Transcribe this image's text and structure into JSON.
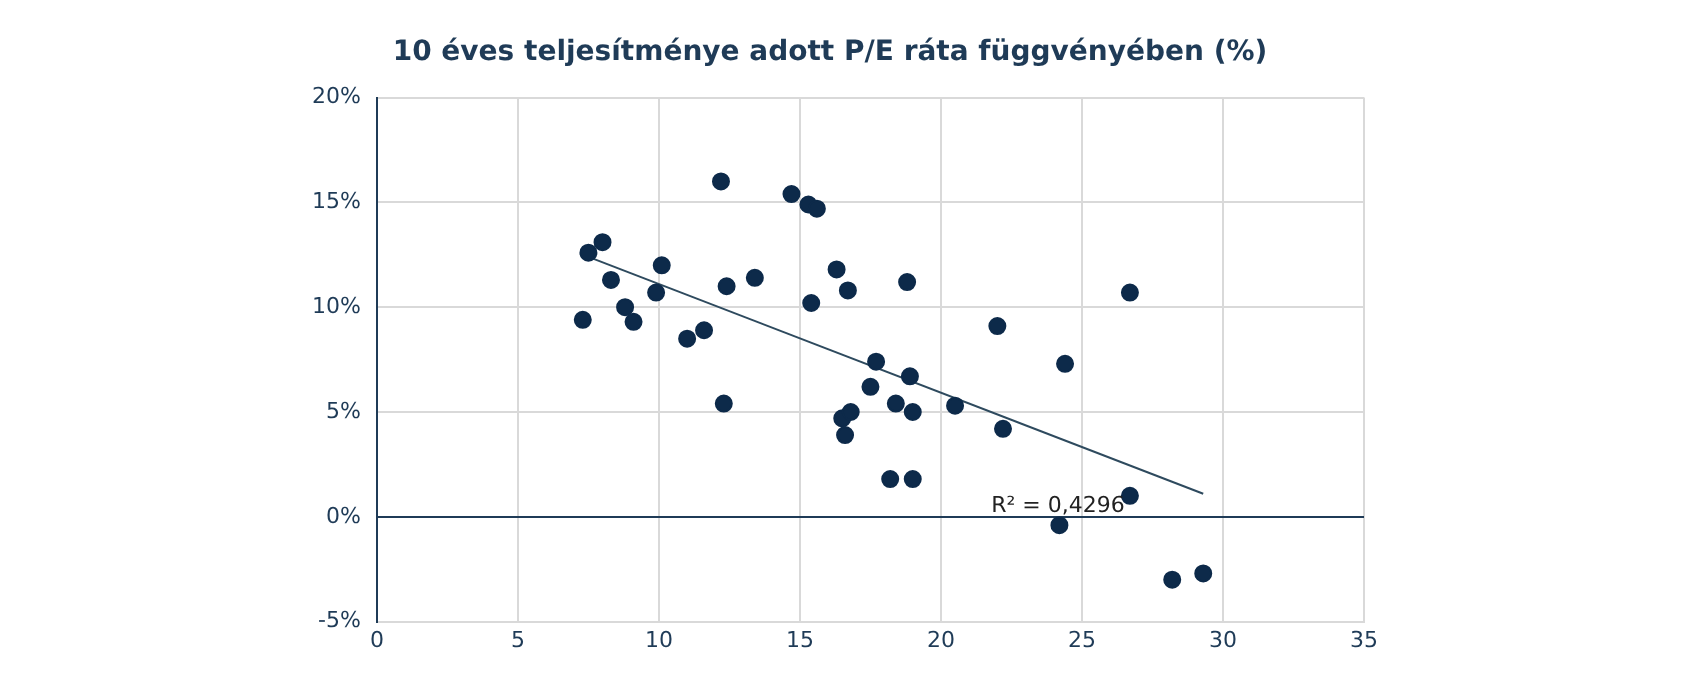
{
  "chart_data": {
    "type": "scatter",
    "title": "10 éves teljesítménye adott P/E ráta függvényében (%)",
    "xlim": [
      0,
      35
    ],
    "xticks": [
      0,
      5,
      10,
      15,
      20,
      25,
      30,
      35
    ],
    "ylim": [
      -5,
      20
    ],
    "yticks": [
      {
        "value": -5,
        "label": "-5%"
      },
      {
        "value": 0,
        "label": "0%"
      },
      {
        "value": 5,
        "label": "5%"
      },
      {
        "value": 10,
        "label": "10%"
      },
      {
        "value": 15,
        "label": "15%"
      },
      {
        "value": 20,
        "label": "20%"
      }
    ],
    "grid": true,
    "legend": false,
    "marker": "circle",
    "annotations": [
      "R² = 0,4296"
    ],
    "series": [
      {
        "type": "scatter",
        "color": "#0d2a4a",
        "x": [
          7.3,
          7.5,
          8.0,
          8.3,
          8.8,
          9.1,
          9.9,
          10.1,
          11.0,
          11.6,
          12.2,
          12.3,
          12.4,
          13.4,
          14.7,
          15.3,
          15.6,
          15.4,
          16.3,
          16.7,
          16.5,
          16.6,
          16.8,
          17.5,
          17.7,
          18.2,
          18.4,
          18.8,
          18.9,
          19.0,
          19.0,
          20.5,
          22.0,
          22.2,
          24.2,
          24.4,
          26.7,
          26.7,
          28.2,
          29.3
        ],
        "values": [
          9.4,
          12.6,
          13.1,
          11.3,
          10.0,
          9.3,
          10.7,
          12.0,
          8.5,
          8.9,
          16.0,
          5.4,
          11.0,
          11.4,
          15.4,
          14.9,
          14.7,
          10.2,
          11.8,
          10.8,
          4.7,
          3.9,
          5.0,
          6.2,
          7.4,
          1.8,
          5.4,
          11.2,
          6.7,
          5.0,
          1.8,
          5.3,
          9.1,
          4.2,
          -0.4,
          7.3,
          10.7,
          1.0,
          -3.0,
          -2.7
        ]
      },
      {
        "type": "line",
        "color": "#2e4a5e",
        "marker": "none",
        "line_style": "solid",
        "x": [
          7.5,
          29.3
        ],
        "values": [
          12.4,
          1.1
        ]
      }
    ]
  }
}
